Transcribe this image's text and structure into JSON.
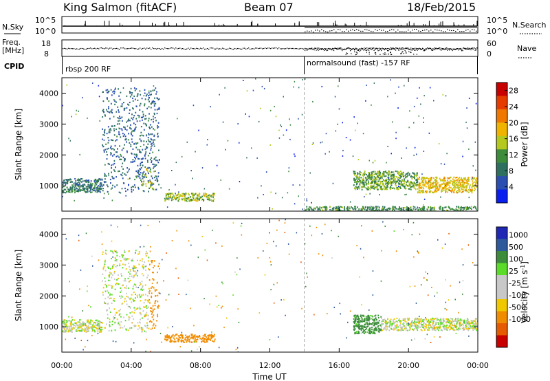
{
  "header": {
    "station": "King Salmon (fitACF)",
    "beam": "Beam 07",
    "date": "18/Feb/2015"
  },
  "status_panels": {
    "nsky_label": "N.Sky",
    "nsky_ticks": [
      "10^5",
      "10^0"
    ],
    "nsearch_label": "N.Search",
    "nsearch_ticks": [
      "10^5",
      "10^0"
    ],
    "freq_label_line1": "Freq.",
    "freq_label_line2": "[MHz]",
    "freq_ticks": [
      "18",
      "8"
    ],
    "nave_label": "Nave",
    "nave_ticks": [
      "60",
      "0"
    ],
    "cpid_label": "CPID",
    "cpid_segments": [
      {
        "label": "rbsp 200 RF",
        "start_hour": 0
      },
      {
        "label": "normalsound (fast) -157 RF",
        "start_hour": 14.0
      }
    ]
  },
  "x_axis": {
    "title": "Time UT",
    "tick_labels": [
      "00:00",
      "04:00",
      "08:00",
      "12:00",
      "16:00",
      "20:00",
      "00:00"
    ],
    "range_hours": [
      0,
      24
    ]
  },
  "colors": {
    "power_scale": [
      "#0a1ef0",
      "#2a4fb0",
      "#2e7060",
      "#3c8c3c",
      "#b4c81e",
      "#f0b400",
      "#f07800",
      "#e63c00",
      "#c80000"
    ],
    "velocity_scale": [
      "#1e28b4",
      "#2e5a9c",
      "#3c8c3c",
      "#5adc28",
      "#c8c8c8",
      "#c8c8c8",
      "#f0c800",
      "#f08c00",
      "#e65a00",
      "#c80000"
    ]
  },
  "chart_data": [
    {
      "type": "heatmap",
      "title": "Power",
      "xlabel": "Time UT",
      "ylabel": "Slant Range [km]",
      "xlim": [
        0,
        24
      ],
      "ylim": [
        180,
        4500
      ],
      "y_ticks": [
        1000,
        2000,
        3000,
        4000
      ],
      "colorbar_label": "Power [dB]",
      "colorbar_ticks": [
        4,
        8,
        12,
        16,
        20,
        24,
        28
      ],
      "colorbar_range": [
        0,
        30
      ],
      "regions": [
        {
          "t0": 0.0,
          "t1": 2.3,
          "r0": 800,
          "r1": 1250,
          "level": 8
        },
        {
          "t0": 2.3,
          "t1": 5.6,
          "r0": 800,
          "r1": 4200,
          "level": 6
        },
        {
          "t0": 4.6,
          "t1": 5.4,
          "r0": 900,
          "r1": 1600,
          "level": 16
        },
        {
          "t0": 5.9,
          "t1": 8.8,
          "r0": 520,
          "r1": 780,
          "level": 14
        },
        {
          "t0": 14.0,
          "t1": 24.0,
          "r0": 200,
          "r1": 350,
          "level": 10
        },
        {
          "t0": 16.8,
          "t1": 20.5,
          "r0": 900,
          "r1": 1500,
          "level": 12
        },
        {
          "t0": 20.5,
          "t1": 24.0,
          "r0": 800,
          "r1": 1300,
          "level": 18
        }
      ]
    },
    {
      "type": "heatmap",
      "title": "Velocity",
      "xlabel": "Time UT",
      "ylabel": "Slant Range [km]",
      "xlim": [
        0,
        24
      ],
      "ylim": [
        180,
        4500
      ],
      "y_ticks": [
        1000,
        2000,
        3000,
        4000
      ],
      "colorbar_label": "Velocity [m s^-1]",
      "colorbar_ticks": [
        1000,
        500,
        100,
        25,
        -25,
        -100,
        -500,
        -1000
      ],
      "colorbar_range": [
        -1000,
        1000
      ],
      "regions": [
        {
          "t0": 0.0,
          "t1": 2.3,
          "r0": 850,
          "r1": 1250,
          "level": 0
        },
        {
          "t0": 2.3,
          "t1": 5.0,
          "r0": 850,
          "r1": 3500,
          "level": 0
        },
        {
          "t0": 5.0,
          "t1": 5.6,
          "r0": 900,
          "r1": 3200,
          "level": -300
        },
        {
          "t0": 5.9,
          "t1": 8.8,
          "r0": 520,
          "r1": 780,
          "level": -300
        },
        {
          "t0": 16.8,
          "t1": 18.4,
          "r0": 800,
          "r1": 1400,
          "level": 150
        },
        {
          "t0": 18.4,
          "t1": 24.0,
          "r0": 900,
          "r1": 1300,
          "level": 0
        }
      ]
    }
  ]
}
